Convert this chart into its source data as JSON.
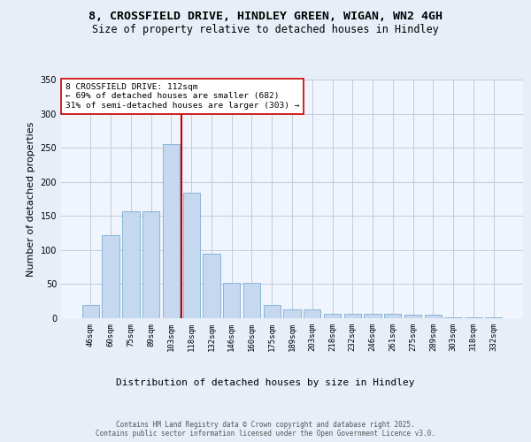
{
  "title1": "8, CROSSFIELD DRIVE, HINDLEY GREEN, WIGAN, WN2 4GH",
  "title2": "Size of property relative to detached houses in Hindley",
  "xlabel": "Distribution of detached houses by size in Hindley",
  "ylabel": "Number of detached properties",
  "categories": [
    "46sqm",
    "60sqm",
    "75sqm",
    "89sqm",
    "103sqm",
    "118sqm",
    "132sqm",
    "146sqm",
    "160sqm",
    "175sqm",
    "189sqm",
    "203sqm",
    "218sqm",
    "232sqm",
    "246sqm",
    "261sqm",
    "275sqm",
    "289sqm",
    "303sqm",
    "318sqm",
    "332sqm"
  ],
  "values": [
    20,
    122,
    157,
    157,
    255,
    184,
    95,
    52,
    52,
    20,
    13,
    13,
    7,
    7,
    7,
    7,
    5,
    5,
    1,
    1,
    1
  ],
  "bar_color": "#c5d8f0",
  "bar_edge_color": "#7aafd4",
  "vline_color": "#cc0000",
  "annotation_text": "8 CROSSFIELD DRIVE: 112sqm\n← 69% of detached houses are smaller (682)\n31% of semi-detached houses are larger (303) →",
  "annotation_box_color": "#ffffff",
  "annotation_box_edge": "#cc0000",
  "ylim": [
    0,
    350
  ],
  "yticks": [
    0,
    50,
    100,
    150,
    200,
    250,
    300,
    350
  ],
  "bg_color": "#e8eef8",
  "plot_bg_color": "#f0f4fc",
  "footer": "Contains HM Land Registry data © Crown copyright and database right 2025.\nContains public sector information licensed under the Open Government Licence v3.0.",
  "title_fontsize": 9.5,
  "subtitle_fontsize": 8.5,
  "tick_fontsize": 6.5,
  "ylabel_fontsize": 8,
  "xlabel_fontsize": 8,
  "footer_fontsize": 5.5
}
